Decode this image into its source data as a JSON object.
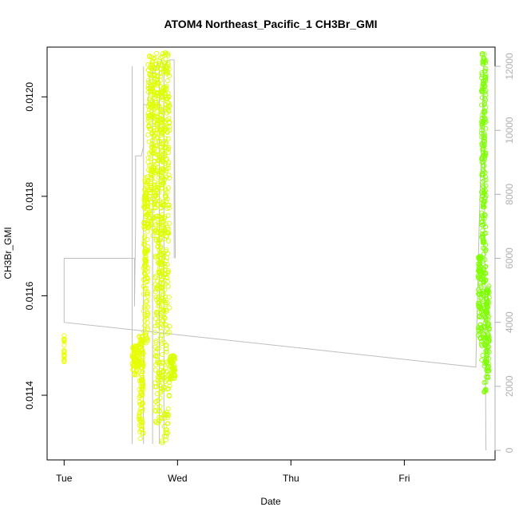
{
  "chart_data": {
    "type": "scatter",
    "title": "ATOM4 Northeast_Pacific_1 CH3Br_GMI",
    "xlabel": "Date",
    "ylabel": "CH3Br_GMI",
    "x_ticks": [
      "Tue",
      "Wed",
      "Thu",
      "Fri"
    ],
    "x_tick_positions_days": [
      0,
      1,
      2,
      3
    ],
    "xlim_days": [
      -0.15,
      3.8
    ],
    "ylim": [
      0.01127,
      0.0121
    ],
    "y_ticks": [
      0.0114,
      0.0116,
      0.0118,
      0.012
    ],
    "y_tick_labels": [
      "0.0114",
      "0.0116",
      "0.0118",
      "0.0120"
    ],
    "y2lim": [
      -300,
      12600
    ],
    "y2_ticks": [
      0,
      2000,
      4000,
      6000,
      8000,
      10000,
      12000
    ],
    "y2_tick_labels": [
      "0",
      "2000",
      "4000",
      "6000",
      "8000",
      "10000",
      "12000"
    ],
    "grid": false,
    "colors": {
      "altitude_line": "#bebebe",
      "points_early": "#e6ff00",
      "points_late": "#7fff00",
      "frame": "#000000",
      "right_axis": "#b0b0b0"
    },
    "series": [
      {
        "name": "",
        "kind": "scatter",
        "axis": "left",
        "segments": [
          {
            "x_start": 0.0,
            "x_end": 0.0,
            "y_min": 0.01145,
            "y_max": 0.01152,
            "color": "#eaff00"
          },
          {
            "x_start": 0.6,
            "x_end": 0.66,
            "y_min": 0.01144,
            "y_max": 0.0115,
            "color": "#e8ff00"
          },
          {
            "x_start": 0.66,
            "x_end": 0.7,
            "y_min": 0.01131,
            "y_max": 0.01152,
            "color": "#e4ff00"
          },
          {
            "x_start": 0.7,
            "x_end": 0.74,
            "y_min": 0.0115,
            "y_max": 0.01184,
            "color": "#e2ff00"
          },
          {
            "x_start": 0.74,
            "x_end": 0.8,
            "y_min": 0.01172,
            "y_max": 0.01209,
            "color": "#e0ff00"
          },
          {
            "x_start": 0.8,
            "x_end": 0.86,
            "y_min": 0.01134,
            "y_max": 0.01209,
            "color": "#deff00"
          },
          {
            "x_start": 0.86,
            "x_end": 0.93,
            "y_min": 0.0113,
            "y_max": 0.01209,
            "color": "#dcff00"
          },
          {
            "x_start": 0.93,
            "x_end": 0.98,
            "y_min": 0.01143,
            "y_max": 0.01148,
            "color": "#daff00"
          },
          {
            "x_start": 3.65,
            "x_end": 3.68,
            "y_min": 0.0115,
            "y_max": 0.01168,
            "color": "#80ff00"
          },
          {
            "x_start": 3.68,
            "x_end": 3.72,
            "y_min": 0.0114,
            "y_max": 0.01209,
            "color": "#7fff00"
          },
          {
            "x_start": 3.72,
            "x_end": 3.75,
            "y_min": 0.01143,
            "y_max": 0.01162,
            "color": "#7dff00"
          }
        ]
      },
      {
        "name": "",
        "kind": "line",
        "axis": "right",
        "points": [
          [
            0.0,
            6000
          ],
          [
            0.0,
            4000
          ],
          [
            3.63,
            2600
          ],
          [
            3.65,
            5500
          ],
          [
            3.66,
            7000
          ],
          [
            3.68,
            9500
          ],
          [
            3.7,
            12000
          ],
          [
            3.71,
            6000
          ],
          [
            3.72,
            0
          ]
        ],
        "aircraft_profile": [
          [
            0.0,
            6000
          ],
          [
            0.62,
            6000
          ],
          [
            0.62,
            4500
          ],
          [
            0.63,
            7000
          ],
          [
            0.63,
            9200
          ],
          [
            0.68,
            9200
          ],
          [
            0.7,
            9500
          ],
          [
            0.7,
            10800
          ],
          [
            0.74,
            10800
          ],
          [
            0.75,
            11500
          ],
          [
            0.76,
            11800
          ],
          [
            0.8,
            11800
          ],
          [
            0.82,
            12100
          ],
          [
            0.84,
            12000
          ],
          [
            0.86,
            12200
          ],
          [
            0.88,
            11900
          ],
          [
            0.9,
            12100
          ],
          [
            0.93,
            12200
          ],
          [
            0.97,
            12200
          ],
          [
            0.98,
            6000
          ],
          [
            0.97,
            12200
          ],
          [
            0.97,
            6000
          ]
        ]
      }
    ]
  }
}
